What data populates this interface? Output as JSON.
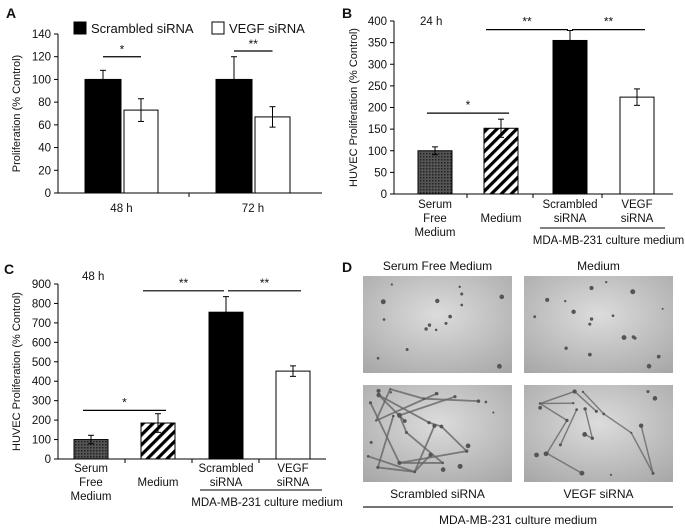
{
  "chart_data": [
    {
      "id": "A",
      "type": "bar",
      "panel_label": "A",
      "ylabel": "Proliferation (% Control)",
      "ylim": [
        0,
        140
      ],
      "yticks": [
        0,
        20,
        40,
        60,
        80,
        100,
        120,
        140
      ],
      "categories": [
        "48 h",
        "72 h"
      ],
      "legend": {
        "placement": "top",
        "entries": [
          "Scrambled siRNA",
          "VEGF siRNA"
        ]
      },
      "series": [
        {
          "name": "Scrambled siRNA",
          "values": [
            100,
            100
          ],
          "errors": [
            8,
            20
          ],
          "fill": "#000000"
        },
        {
          "name": "VEGF siRNA",
          "values": [
            73,
            67
          ],
          "errors": [
            10,
            9
          ],
          "fill": "#ffffff"
        }
      ],
      "significance": [
        {
          "category": "48 h",
          "label": "*",
          "y": 120
        },
        {
          "category": "72 h",
          "label": "**",
          "y": 125
        }
      ]
    },
    {
      "id": "B",
      "type": "bar",
      "panel_label": "B",
      "annotation": "24 h",
      "ylabel": "HUVEC Proliferation (% Control)",
      "ylim": [
        0,
        400
      ],
      "yticks": [
        0,
        50,
        100,
        150,
        200,
        250,
        300,
        350,
        400
      ],
      "categories": [
        "Serum Free Medium",
        "Medium",
        "Scrambled siRNA",
        "VEGF siRNA"
      ],
      "category_lines": [
        [
          "Serum",
          "Free",
          "Medium"
        ],
        [
          "Medium"
        ],
        [
          "Scrambled",
          "siRNA"
        ],
        [
          "VEGF",
          "siRNA"
        ]
      ],
      "values": [
        100,
        152,
        355,
        224
      ],
      "errors": [
        9,
        21,
        23,
        19
      ],
      "fills": [
        "dots",
        "stripes",
        "#000000",
        "#ffffff"
      ],
      "group_label": "MDA-MB-231 culture medium",
      "significance": [
        {
          "from": 0,
          "to": 1,
          "label": "*",
          "y": 187
        },
        {
          "from": 1,
          "to": 2,
          "label": "**",
          "y": 380
        },
        {
          "from": 2,
          "to": 3,
          "label": "**",
          "y": 380
        }
      ]
    },
    {
      "id": "C",
      "type": "bar",
      "panel_label": "C",
      "annotation": "48 h",
      "ylabel": "HUVEC Proliferation (% Control)",
      "ylim": [
        0,
        900
      ],
      "yticks": [
        0,
        100,
        200,
        300,
        400,
        500,
        600,
        700,
        800,
        900
      ],
      "categories": [
        "Serum Free Medium",
        "Medium",
        "Scrambled siRNA",
        "VEGF siRNA"
      ],
      "category_lines": [
        [
          "Serum",
          "Free",
          "Medium"
        ],
        [
          "Medium"
        ],
        [
          "Scrambled",
          "siRNA"
        ],
        [
          "VEGF",
          "siRNA"
        ]
      ],
      "values": [
        100,
        185,
        755,
        452
      ],
      "errors": [
        22,
        48,
        80,
        27
      ],
      "fills": [
        "dots",
        "stripes",
        "#000000",
        "#ffffff"
      ],
      "group_label": "MDA-MB-231 culture medium",
      "significance": [
        {
          "from": 0,
          "to": 1,
          "label": "*",
          "y": 250
        },
        {
          "from": 1,
          "to": 2,
          "label": "**",
          "y": 865
        },
        {
          "from": 2,
          "to": 3,
          "label": "**",
          "y": 865
        }
      ]
    }
  ],
  "panel_d": {
    "panel_label": "D",
    "images": [
      {
        "title": "Serum Free Medium",
        "network": 0.1
      },
      {
        "title": "Medium",
        "network": 0.25
      },
      {
        "title": "Scrambled  siRNA",
        "network": 1.0
      },
      {
        "title": "VEGF siRNA",
        "network": 0.55
      }
    ],
    "group_label": "MDA-MB-231 culture medium"
  }
}
